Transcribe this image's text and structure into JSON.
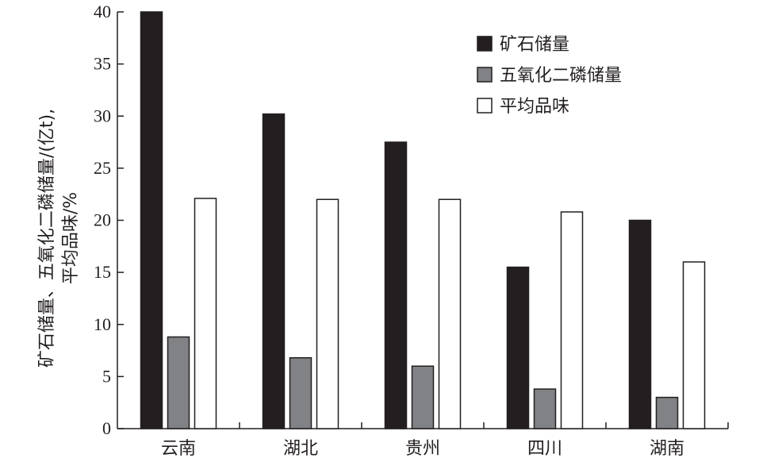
{
  "chart_data": {
    "type": "bar",
    "categories": [
      "云南",
      "湖北",
      "贵州",
      "四川",
      "湖南"
    ],
    "series": [
      {
        "name": "矿石储量",
        "values": [
          40,
          30.2,
          27.5,
          15.5,
          20
        ],
        "color": "#231f20"
      },
      {
        "name": "五氧化二磷储量",
        "values": [
          8.8,
          6.8,
          6,
          3.8,
          3
        ],
        "color": "#808285"
      },
      {
        "name": "平均品味",
        "values": [
          22.1,
          22,
          22,
          20.8,
          16
        ],
        "color": "#ffffff"
      }
    ],
    "ylabel_lines": [
      "矿石储量、五氧化二磷储量/(亿t),",
      "平均品味/%"
    ],
    "ylim": [
      0,
      40
    ],
    "yticks": [
      0,
      5,
      10,
      15,
      20,
      25,
      30,
      35,
      40
    ],
    "legend_position": "top-right",
    "grid": false
  }
}
